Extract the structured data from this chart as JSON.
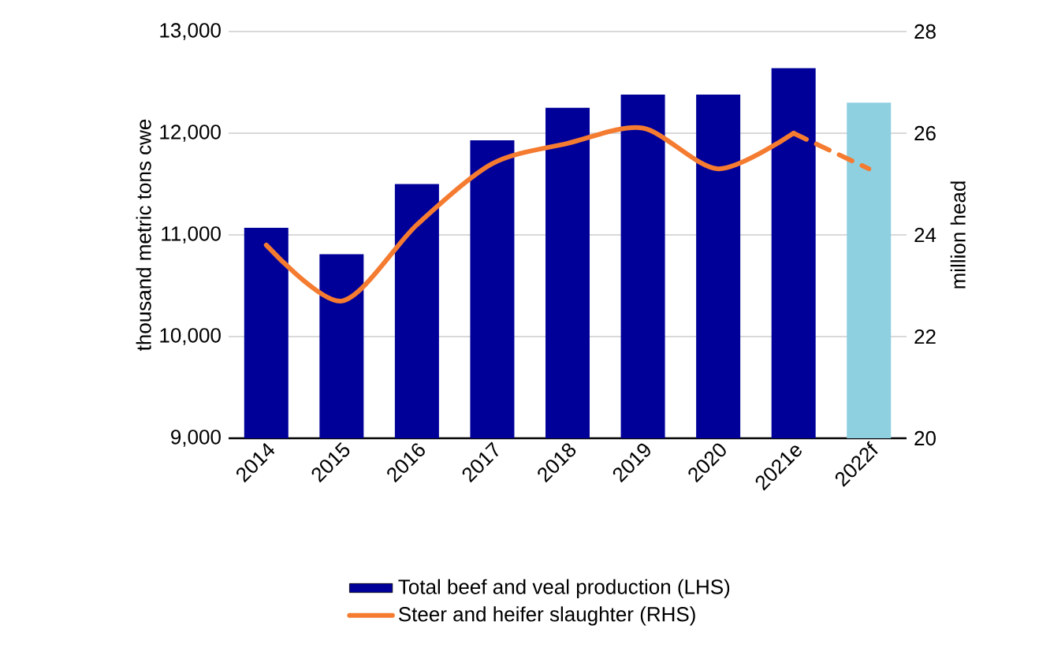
{
  "chart_data": {
    "type": "bar",
    "categories": [
      "2014",
      "2015",
      "2016",
      "2017",
      "2018",
      "2019",
      "2020",
      "2021e",
      "2022f"
    ],
    "series": [
      {
        "name": "Total beef and veal production (LHS)",
        "colors": [
          "#000099",
          "#000099",
          "#000099",
          "#000099",
          "#000099",
          "#000099",
          "#000099",
          "#000099",
          "#8ecfe0"
        ],
        "values": [
          11070,
          10810,
          11500,
          11930,
          12250,
          12380,
          12380,
          12640,
          12300
        ]
      },
      {
        "name": "Steer and heifer slaughter (RHS)",
        "type": "line",
        "axis": "y2",
        "color": "#f47b30",
        "line_style": "solid",
        "values": [
          23.8,
          22.7,
          24.2,
          25.4,
          25.8,
          26.1,
          25.3,
          26.0,
          null
        ]
      },
      {
        "type": "line",
        "axis": "y2",
        "color": "#f47b30",
        "line_style": "dashed",
        "values": [
          null,
          null,
          null,
          null,
          null,
          null,
          null,
          26.0,
          25.3
        ]
      }
    ],
    "ylabel": "thousand metric tons cwe",
    "y2label": "million head",
    "ylim": [
      9000,
      13000
    ],
    "yticks": [
      {
        "value": 9000,
        "label": "9,000"
      },
      {
        "value": 10000,
        "label": "10,000"
      },
      {
        "value": 11000,
        "label": "11,000"
      },
      {
        "value": 12000,
        "label": "12,000"
      },
      {
        "value": 13000,
        "label": "13,000"
      }
    ],
    "y2lim": [
      20,
      28
    ],
    "y2ticks": [
      20,
      22,
      24,
      26,
      28
    ],
    "grid": "y",
    "legend": "bottom"
  }
}
